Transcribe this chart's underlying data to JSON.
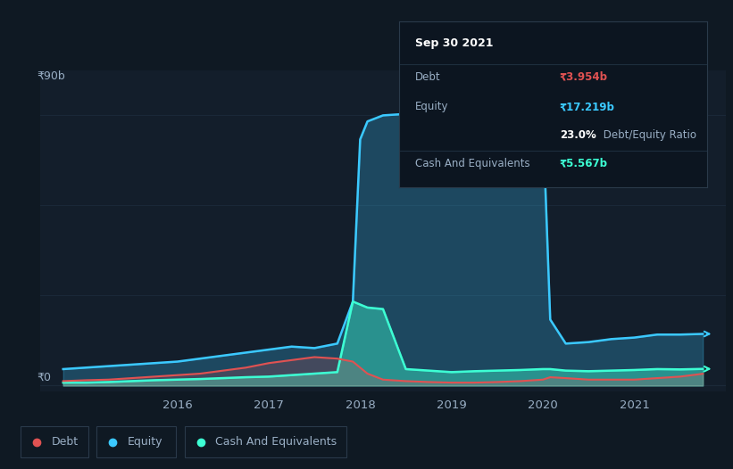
{
  "background_color": "#0f1923",
  "chart_bg": "#131e2b",
  "tooltip": {
    "date": "Sep 30 2021",
    "debt_label": "Debt",
    "debt_val": "₹3.954b",
    "equity_label": "Equity",
    "equity_val": "₹17.219b",
    "ratio_pct": "23.0%",
    "ratio_label": " Debt/Equity Ratio",
    "cash_label": "Cash And Equivalents",
    "cash_val": "₹5.567b"
  },
  "ylabel_top": "₹90b",
  "ylabel_bottom": "₹0",
  "x_ticks": [
    "2016",
    "2017",
    "2018",
    "2019",
    "2020",
    "2021"
  ],
  "colors": {
    "debt": "#e05252",
    "equity": "#3bc9ff",
    "cash": "#3dffd4",
    "grid": "#1c2a3a",
    "text": "#9aafc5",
    "tooltip_bg": "#0c1520",
    "tooltip_border": "#2a3a4a",
    "tooltip_sep": "#1e2e3e"
  },
  "legend_items": [
    "Debt",
    "Equity",
    "Cash And Equivalents"
  ],
  "legend_colors": [
    "#e05252",
    "#3bc9ff",
    "#3dffd4"
  ],
  "time": [
    2014.75,
    2015.0,
    2015.25,
    2015.5,
    2015.75,
    2016.0,
    2016.25,
    2016.5,
    2016.75,
    2017.0,
    2017.25,
    2017.5,
    2017.75,
    2017.92,
    2018.0,
    2018.08,
    2018.25,
    2018.5,
    2018.75,
    2019.0,
    2019.25,
    2019.5,
    2019.75,
    2020.0,
    2020.08,
    2020.25,
    2020.5,
    2020.75,
    2021.0,
    2021.25,
    2021.5,
    2021.75
  ],
  "equity_vals": [
    5.5,
    6.0,
    6.5,
    7.0,
    7.5,
    8.0,
    9.0,
    10.0,
    11.0,
    12.0,
    13.0,
    12.5,
    14.0,
    28.0,
    82.0,
    88.0,
    90.0,
    90.5,
    90.5,
    90.0,
    89.5,
    89.0,
    89.0,
    88.5,
    22.0,
    14.0,
    14.5,
    15.5,
    16.0,
    17.0,
    17.0,
    17.219
  ],
  "debt_vals": [
    1.5,
    1.8,
    2.0,
    2.5,
    3.0,
    3.5,
    4.0,
    5.0,
    6.0,
    7.5,
    8.5,
    9.5,
    9.0,
    8.0,
    6.0,
    4.0,
    2.0,
    1.5,
    1.2,
    1.0,
    1.0,
    1.2,
    1.5,
    2.0,
    2.8,
    2.5,
    2.0,
    2.0,
    2.0,
    2.5,
    3.0,
    3.954
  ],
  "cash_vals": [
    1.0,
    1.0,
    1.2,
    1.5,
    1.8,
    2.0,
    2.2,
    2.5,
    2.8,
    3.0,
    3.5,
    4.0,
    4.5,
    28.0,
    27.0,
    26.0,
    25.5,
    5.5,
    5.0,
    4.5,
    4.8,
    5.0,
    5.2,
    5.5,
    5.5,
    5.0,
    4.8,
    5.0,
    5.2,
    5.5,
    5.4,
    5.567
  ],
  "xlim": [
    2014.5,
    2022.0
  ],
  "ylim": [
    -2,
    105
  ]
}
